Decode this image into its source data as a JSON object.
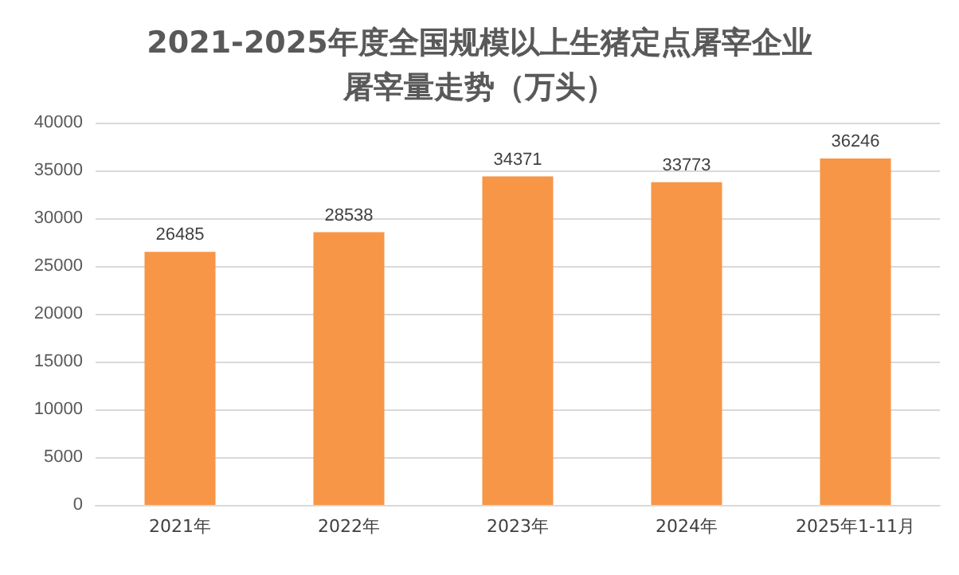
{
  "chart_data": {
    "type": "bar",
    "title": "2021-2025年度全国规模以上生猪定点屠宰企业屠宰量走势（万头）",
    "categories": [
      "2021年",
      "2022年",
      "2023年",
      "2024年",
      "2025年1-11月"
    ],
    "values": [
      26485,
      28538,
      34371,
      33773,
      36246
    ],
    "color": "#f79646",
    "ylim": [
      0,
      40000
    ],
    "yticks": [
      0,
      5000,
      10000,
      15000,
      20000,
      25000,
      30000,
      35000,
      40000
    ],
    "grid": "y",
    "data_labels": true
  }
}
